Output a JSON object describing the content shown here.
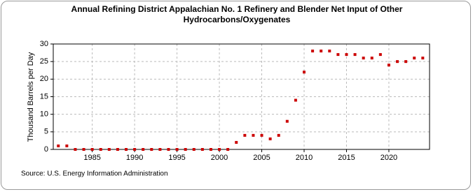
{
  "chart_data": {
    "type": "scatter",
    "title": "Annual Refining District Appalachian No. 1 Refinery and Blender Net Input of Other Hydrocarbons/Oxygenates",
    "y_label": "Thousand Barrels per Day",
    "source": "Source: U.S. Energy Information Administration",
    "x": [
      1981,
      1982,
      1983,
      1984,
      1985,
      1986,
      1987,
      1988,
      1989,
      1990,
      1991,
      1992,
      1993,
      1994,
      1995,
      1996,
      1997,
      1998,
      1999,
      2000,
      2001,
      2002,
      2003,
      2004,
      2005,
      2006,
      2007,
      2008,
      2009,
      2010,
      2011,
      2012,
      2013,
      2014,
      2015,
      2016,
      2017,
      2018,
      2019,
      2020,
      2021,
      2022,
      2023,
      2024
    ],
    "values": [
      1,
      1,
      0,
      0,
      0,
      0,
      0,
      0,
      0,
      0,
      0,
      0,
      0,
      0,
      0,
      0,
      0,
      0,
      0,
      0,
      0,
      2,
      4,
      4,
      4,
      3,
      4,
      8,
      14,
      22,
      28,
      28,
      28,
      27,
      27,
      27,
      26,
      26,
      27,
      24,
      25,
      25,
      26,
      26
    ],
    "color": "#cc0000",
    "xlim": [
      1980.4,
      2024.8
    ],
    "xticks": [
      1985,
      1990,
      1995,
      2000,
      2005,
      2010,
      2015,
      2020
    ],
    "ylim": [
      0,
      30
    ],
    "yticks": [
      0,
      5,
      10,
      15,
      20,
      25,
      30
    ],
    "grid": true
  }
}
